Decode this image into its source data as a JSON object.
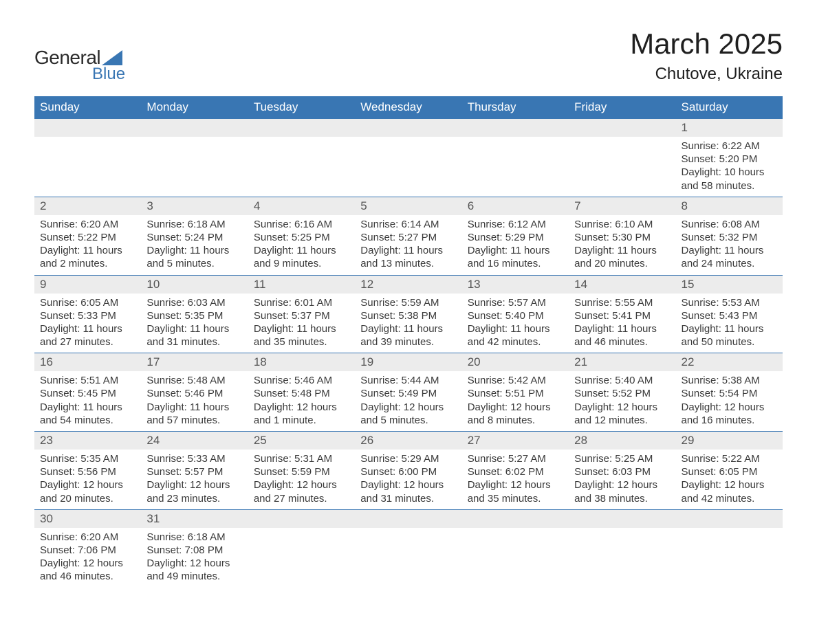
{
  "logo": {
    "word1": "General",
    "word2": "Blue"
  },
  "header": {
    "month_title": "March 2025",
    "location": "Chutove, Ukraine"
  },
  "colors": {
    "header_bg": "#3976b3",
    "header_fg": "#ffffff",
    "daynum_bg": "#ececec",
    "row_border": "#3976b3",
    "body_text": "#3a3a3a",
    "logo_text1": "#2a2a2a",
    "logo_text2": "#3976b3"
  },
  "fonts": {
    "month_title_pt": 42,
    "location_pt": 24,
    "weekday_pt": 17,
    "daynum_pt": 17,
    "cell_pt": 15
  },
  "weekdays": [
    "Sunday",
    "Monday",
    "Tuesday",
    "Wednesday",
    "Thursday",
    "Friday",
    "Saturday"
  ],
  "labels": {
    "sunrise": "Sunrise:",
    "sunset": "Sunset:",
    "daylight": "Daylight:"
  },
  "weeks": [
    [
      null,
      null,
      null,
      null,
      null,
      null,
      {
        "n": "1",
        "sunrise": "6:22 AM",
        "sunset": "5:20 PM",
        "daylight": "10 hours and 58 minutes."
      }
    ],
    [
      {
        "n": "2",
        "sunrise": "6:20 AM",
        "sunset": "5:22 PM",
        "daylight": "11 hours and 2 minutes."
      },
      {
        "n": "3",
        "sunrise": "6:18 AM",
        "sunset": "5:24 PM",
        "daylight": "11 hours and 5 minutes."
      },
      {
        "n": "4",
        "sunrise": "6:16 AM",
        "sunset": "5:25 PM",
        "daylight": "11 hours and 9 minutes."
      },
      {
        "n": "5",
        "sunrise": "6:14 AM",
        "sunset": "5:27 PM",
        "daylight": "11 hours and 13 minutes."
      },
      {
        "n": "6",
        "sunrise": "6:12 AM",
        "sunset": "5:29 PM",
        "daylight": "11 hours and 16 minutes."
      },
      {
        "n": "7",
        "sunrise": "6:10 AM",
        "sunset": "5:30 PM",
        "daylight": "11 hours and 20 minutes."
      },
      {
        "n": "8",
        "sunrise": "6:08 AM",
        "sunset": "5:32 PM",
        "daylight": "11 hours and 24 minutes."
      }
    ],
    [
      {
        "n": "9",
        "sunrise": "6:05 AM",
        "sunset": "5:33 PM",
        "daylight": "11 hours and 27 minutes."
      },
      {
        "n": "10",
        "sunrise": "6:03 AM",
        "sunset": "5:35 PM",
        "daylight": "11 hours and 31 minutes."
      },
      {
        "n": "11",
        "sunrise": "6:01 AM",
        "sunset": "5:37 PM",
        "daylight": "11 hours and 35 minutes."
      },
      {
        "n": "12",
        "sunrise": "5:59 AM",
        "sunset": "5:38 PM",
        "daylight": "11 hours and 39 minutes."
      },
      {
        "n": "13",
        "sunrise": "5:57 AM",
        "sunset": "5:40 PM",
        "daylight": "11 hours and 42 minutes."
      },
      {
        "n": "14",
        "sunrise": "5:55 AM",
        "sunset": "5:41 PM",
        "daylight": "11 hours and 46 minutes."
      },
      {
        "n": "15",
        "sunrise": "5:53 AM",
        "sunset": "5:43 PM",
        "daylight": "11 hours and 50 minutes."
      }
    ],
    [
      {
        "n": "16",
        "sunrise": "5:51 AM",
        "sunset": "5:45 PM",
        "daylight": "11 hours and 54 minutes."
      },
      {
        "n": "17",
        "sunrise": "5:48 AM",
        "sunset": "5:46 PM",
        "daylight": "11 hours and 57 minutes."
      },
      {
        "n": "18",
        "sunrise": "5:46 AM",
        "sunset": "5:48 PM",
        "daylight": "12 hours and 1 minute."
      },
      {
        "n": "19",
        "sunrise": "5:44 AM",
        "sunset": "5:49 PM",
        "daylight": "12 hours and 5 minutes."
      },
      {
        "n": "20",
        "sunrise": "5:42 AM",
        "sunset": "5:51 PM",
        "daylight": "12 hours and 8 minutes."
      },
      {
        "n": "21",
        "sunrise": "5:40 AM",
        "sunset": "5:52 PM",
        "daylight": "12 hours and 12 minutes."
      },
      {
        "n": "22",
        "sunrise": "5:38 AM",
        "sunset": "5:54 PM",
        "daylight": "12 hours and 16 minutes."
      }
    ],
    [
      {
        "n": "23",
        "sunrise": "5:35 AM",
        "sunset": "5:56 PM",
        "daylight": "12 hours and 20 minutes."
      },
      {
        "n": "24",
        "sunrise": "5:33 AM",
        "sunset": "5:57 PM",
        "daylight": "12 hours and 23 minutes."
      },
      {
        "n": "25",
        "sunrise": "5:31 AM",
        "sunset": "5:59 PM",
        "daylight": "12 hours and 27 minutes."
      },
      {
        "n": "26",
        "sunrise": "5:29 AM",
        "sunset": "6:00 PM",
        "daylight": "12 hours and 31 minutes."
      },
      {
        "n": "27",
        "sunrise": "5:27 AM",
        "sunset": "6:02 PM",
        "daylight": "12 hours and 35 minutes."
      },
      {
        "n": "28",
        "sunrise": "5:25 AM",
        "sunset": "6:03 PM",
        "daylight": "12 hours and 38 minutes."
      },
      {
        "n": "29",
        "sunrise": "5:22 AM",
        "sunset": "6:05 PM",
        "daylight": "12 hours and 42 minutes."
      }
    ],
    [
      {
        "n": "30",
        "sunrise": "6:20 AM",
        "sunset": "7:06 PM",
        "daylight": "12 hours and 46 minutes."
      },
      {
        "n": "31",
        "sunrise": "6:18 AM",
        "sunset": "7:08 PM",
        "daylight": "12 hours and 49 minutes."
      },
      null,
      null,
      null,
      null,
      null
    ]
  ]
}
